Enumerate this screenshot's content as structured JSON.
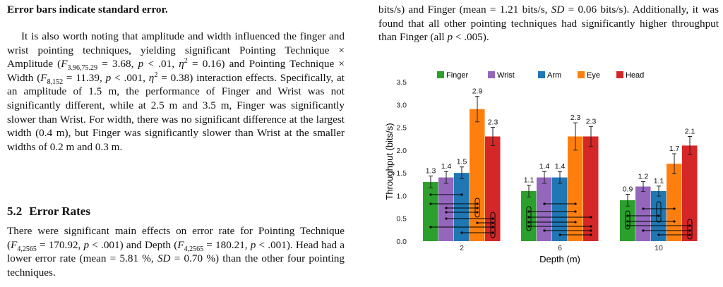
{
  "left": {
    "caption_tail": "Error bars indicate standard error.",
    "p1": "It is also worth noting that amplitude and width influenced the finger and wrist pointing techniques, yielding significant Pointing Technique × Amplitude (F3.96,75.29 = 3.68, p < .01, η2 = 0.16) and Pointing Technique × Width (F8,152 = 11.39, p < .001, η2 = 0.38) interaction effects. Specifically, at an amplitude of 1.5 m, the performance of Finger and Wrist was not significantly different, while at 2.5 m and 3.5 m, Finger was significantly slower than Wrist. For width, there was no significant difference at the largest width (0.4 m), but Finger was significantly slower than Wrist at the smaller widths of 0.2 m and 0.3 m.",
    "section_number": "5.2",
    "section_title": "Error Rates",
    "p2": "There were significant main effects on error rate for Pointing Technique (F4,2565 = 170.92, p < .001) and Depth (F4,2565 = 180.21, p < .001). Head had a lower error rate (mean = 5.81 %, SD = 0.70 %) than the other four pointing techniques."
  },
  "right": {
    "p1": "bits/s) and Finger (mean = 1.21 bits/s, SD = 0.06 bits/s). Additionally, it was found that all other pointing techniques had significantly higher throughput than Finger (all p < .005)."
  },
  "chart_data": {
    "type": "bar",
    "categories": [
      "2",
      "6",
      "10"
    ],
    "series": [
      {
        "name": "Finger",
        "color": "#2ca02c",
        "values": [
          1.3,
          1.1,
          0.9
        ],
        "errors": [
          0.13,
          0.13,
          0.13
        ]
      },
      {
        "name": "Wrist",
        "color": "#9467bd",
        "values": [
          1.4,
          1.4,
          1.2
        ],
        "errors": [
          0.13,
          0.13,
          0.11
        ]
      },
      {
        "name": "Arm",
        "color": "#1f77b4",
        "values": [
          1.5,
          1.4,
          1.1
        ],
        "errors": [
          0.13,
          0.13,
          0.11
        ]
      },
      {
        "name": "Eye",
        "color": "#ff7f0e",
        "values": [
          2.9,
          2.3,
          1.7
        ],
        "errors": [
          0.28,
          0.3,
          0.22
        ]
      },
      {
        "name": "Head",
        "color": "#d62728",
        "values": [
          2.3,
          2.3,
          2.1
        ],
        "errors": [
          0.2,
          0.22,
          0.2
        ]
      }
    ],
    "value_labels": [
      [
        "1.3",
        "1.1",
        "0.9"
      ],
      [
        "1.4",
        "1.4",
        "1.2"
      ],
      [
        "1.5",
        "1.4",
        "1.1"
      ],
      [
        "2.9",
        "2.3",
        "1.7"
      ],
      [
        "2.3",
        "2.3",
        "2.1"
      ]
    ],
    "ylabel": "Throughput (bits/s)",
    "xlabel": "Depth (m)",
    "ylim": [
      0,
      3.5
    ],
    "yticks": [
      "0.0",
      "0.5",
      "1.0",
      "1.5",
      "2.0",
      "2.5",
      "3.0",
      "3.5"
    ],
    "legend_position": "top",
    "grid": false,
    "significance_brackets": "pairwise connector lines drawn below each group"
  }
}
